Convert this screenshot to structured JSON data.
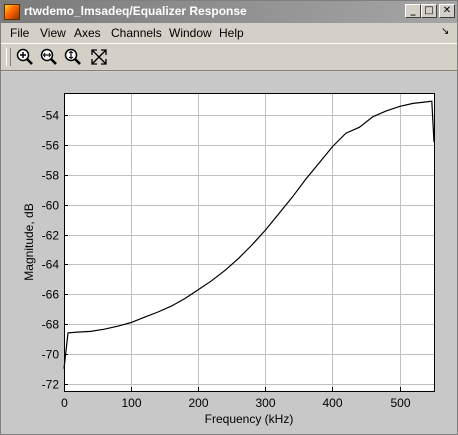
{
  "window": {
    "title": "rtwdemo_lmsadeq/Equalizer Response",
    "minimize_glyph": "_",
    "maximize_glyph": "□",
    "close_glyph": "✕"
  },
  "menu": {
    "items": [
      "File",
      "View",
      "Axes",
      "Channels",
      "Window",
      "Help"
    ],
    "dock_glyph": "↘"
  },
  "toolbar": {
    "tools": [
      {
        "icon": "zoom-in-icon"
      },
      {
        "icon": "zoom-x-icon"
      },
      {
        "icon": "zoom-y-icon"
      },
      {
        "icon": "autoscale-icon"
      }
    ]
  },
  "chart_data": {
    "type": "line",
    "title": "",
    "xlabel": "Frequency (kHz)",
    "ylabel": "Magnitude, dB",
    "xlim": [
      0,
      551.25
    ],
    "ylim": [
      -72.5,
      -52.5
    ],
    "xticks": [
      0,
      100,
      200,
      300,
      400,
      500
    ],
    "yticks": [
      -54,
      -56,
      -58,
      -60,
      -62,
      -64,
      -66,
      -68,
      -70,
      -72
    ],
    "grid": true,
    "series": [
      {
        "color": "#000000",
        "x": [
          0,
          6,
          20,
          40,
          60,
          80,
          100,
          120,
          140,
          160,
          180,
          200,
          220,
          240,
          260,
          280,
          300,
          320,
          340,
          360,
          380,
          400,
          420,
          440,
          460,
          480,
          500,
          520,
          540,
          548,
          551.25
        ],
        "y": [
          -71.0,
          -68.6,
          -68.55,
          -68.5,
          -68.35,
          -68.15,
          -67.9,
          -67.55,
          -67.2,
          -66.8,
          -66.3,
          -65.7,
          -65.1,
          -64.4,
          -63.6,
          -62.7,
          -61.7,
          -60.6,
          -59.5,
          -58.3,
          -57.2,
          -56.1,
          -55.2,
          -54.8,
          -54.1,
          -53.7,
          -53.4,
          -53.2,
          -53.1,
          -53.05,
          -55.8
        ]
      }
    ]
  }
}
